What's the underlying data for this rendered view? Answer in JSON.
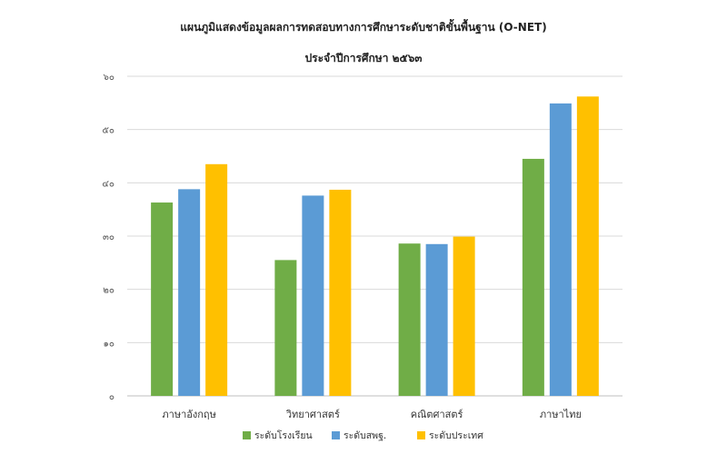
{
  "chart_data": {
    "type": "bar",
    "title": "แผนภูมิแสดงข้อมูลผลการทดสอบทางการศึกษาระดับชาติขั้นพื้นฐาน  (O-NET)",
    "subtitle": "ประจำปีการศึกษา  ๒๕๖๓",
    "xlabel": "",
    "ylabel": "",
    "ylim": [
      0,
      60
    ],
    "yticks": [
      0,
      10,
      20,
      30,
      40,
      50,
      60
    ],
    "ytick_labels": [
      "๐",
      "๑๐",
      "๒๐",
      "๓๐",
      "๔๐",
      "๕๐",
      "๖๐"
    ],
    "grid": true,
    "legend_position": "bottom",
    "categories": [
      "ภาษาอังกฤษ",
      "วิทยาศาสตร์",
      "คณิตศาสตร์",
      "ภาษาไทย"
    ],
    "series": [
      {
        "name": "ระดับโรงเรียน",
        "color": "#70ad47",
        "values": [
          36.3,
          25.5,
          28.6,
          44.5
        ]
      },
      {
        "name": "ระดับสพฐ.",
        "color": "#5b9bd5",
        "values": [
          38.8,
          37.6,
          28.5,
          54.9
        ]
      },
      {
        "name": "ระดับประเทศ",
        "color": "#ffc000",
        "values": [
          43.5,
          38.7,
          29.9,
          56.2
        ]
      }
    ]
  }
}
